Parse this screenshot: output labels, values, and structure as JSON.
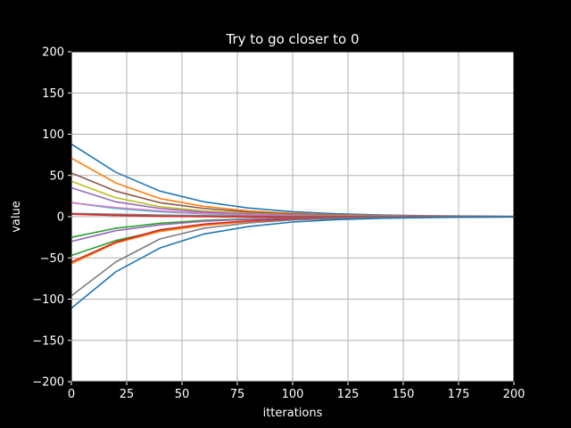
{
  "chart_data": {
    "type": "line",
    "title": "Try to go closer to 0",
    "xlabel": "itterations",
    "ylabel": "value",
    "xlim": [
      0,
      200
    ],
    "ylim": [
      -200,
      200
    ],
    "xticks": [
      0,
      25,
      50,
      75,
      100,
      125,
      150,
      175,
      200
    ],
    "yticks": [
      -200,
      -150,
      -100,
      -50,
      0,
      50,
      100,
      150,
      200
    ],
    "xtick_labels": [
      "0",
      "25",
      "50",
      "75",
      "100",
      "125",
      "150",
      "175",
      "200"
    ],
    "ytick_labels": [
      "−200",
      "−150",
      "−100",
      "−50",
      "0",
      "50",
      "100",
      "150",
      "200"
    ],
    "grid": true,
    "background": "#ffffff",
    "figure_background": "#000000",
    "x": [
      0,
      20,
      40,
      60,
      80,
      100,
      120,
      140,
      160,
      180,
      200
    ],
    "series": [
      {
        "color": "#1f77b4",
        "values": [
          88,
          54,
          31,
          18,
          10.5,
          6,
          3.5,
          2,
          1.2,
          0.7,
          0.4
        ]
      },
      {
        "color": "#ff7f0e",
        "values": [
          71,
          41,
          22,
          12.5,
          7,
          4,
          2.3,
          1.3,
          0.8,
          0.4,
          0.2
        ]
      },
      {
        "color": "#8c564b",
        "values": [
          53,
          31,
          17,
          10,
          5.5,
          3.2,
          1.8,
          1,
          0.6,
          0.3,
          0.2
        ]
      },
      {
        "color": "#bcbd22",
        "values": [
          43,
          23,
          12,
          7,
          4,
          2.3,
          1.3,
          0.7,
          0.4,
          0.2,
          0.1
        ]
      },
      {
        "color": "#9467bd",
        "values": [
          35,
          18,
          10,
          5.5,
          3.2,
          1.8,
          1,
          0.6,
          0.3,
          0.2,
          0.1
        ]
      },
      {
        "color": "#17becf",
        "values": [
          17,
          10,
          6,
          3.5,
          2,
          1.1,
          0.6,
          0.4,
          0.2,
          0.1,
          0.1
        ]
      },
      {
        "color": "#e377c2",
        "values": [
          17,
          11,
          7,
          4,
          2.3,
          1.3,
          0.8,
          0.5,
          0.3,
          0.2,
          0.1
        ]
      },
      {
        "color": "#7f7f7f",
        "values": [
          4,
          3,
          2,
          1.3,
          0.8,
          0.5,
          0.3,
          0.2,
          0.1,
          0.1,
          0
        ]
      },
      {
        "color": "#d62728",
        "values": [
          3,
          1.5,
          0.5,
          0,
          -0.3,
          -0.3,
          -0.2,
          -0.1,
          -0.1,
          0,
          0
        ]
      },
      {
        "color": "#2ca02c",
        "values": [
          -25,
          -14,
          -8,
          -4.5,
          -2.6,
          -1.5,
          -0.9,
          -0.5,
          -0.3,
          -0.2,
          -0.1
        ]
      },
      {
        "color": "#9467bd",
        "values": [
          -30,
          -17,
          -10,
          -5.5,
          -3.2,
          -1.8,
          -1,
          -0.6,
          -0.3,
          -0.2,
          -0.1
        ]
      },
      {
        "color": "#2ca02c",
        "values": [
          -47,
          -29,
          -17,
          -10,
          -5.6,
          -3.2,
          -1.9,
          -1.1,
          -0.6,
          -0.4,
          -0.2
        ]
      },
      {
        "color": "#ff7f0e",
        "values": [
          -57,
          -32,
          -18,
          -10.5,
          -6,
          -3.4,
          -2,
          -1.1,
          -0.6,
          -0.4,
          -0.2
        ]
      },
      {
        "color": "#d62728",
        "values": [
          -55,
          -31,
          -16,
          -9,
          -5,
          -2.8,
          -1.6,
          -0.9,
          -0.5,
          -0.3,
          -0.2
        ]
      },
      {
        "color": "#7f7f7f",
        "values": [
          -96,
          -55,
          -27,
          -14,
          -7.5,
          -4,
          -2.2,
          -1.2,
          -0.7,
          -0.4,
          -0.2
        ]
      },
      {
        "color": "#1f77b4",
        "values": [
          -111,
          -67,
          -38,
          -21,
          -12,
          -6.5,
          -3.6,
          -2,
          -1.1,
          -0.6,
          -0.3
        ]
      }
    ]
  }
}
